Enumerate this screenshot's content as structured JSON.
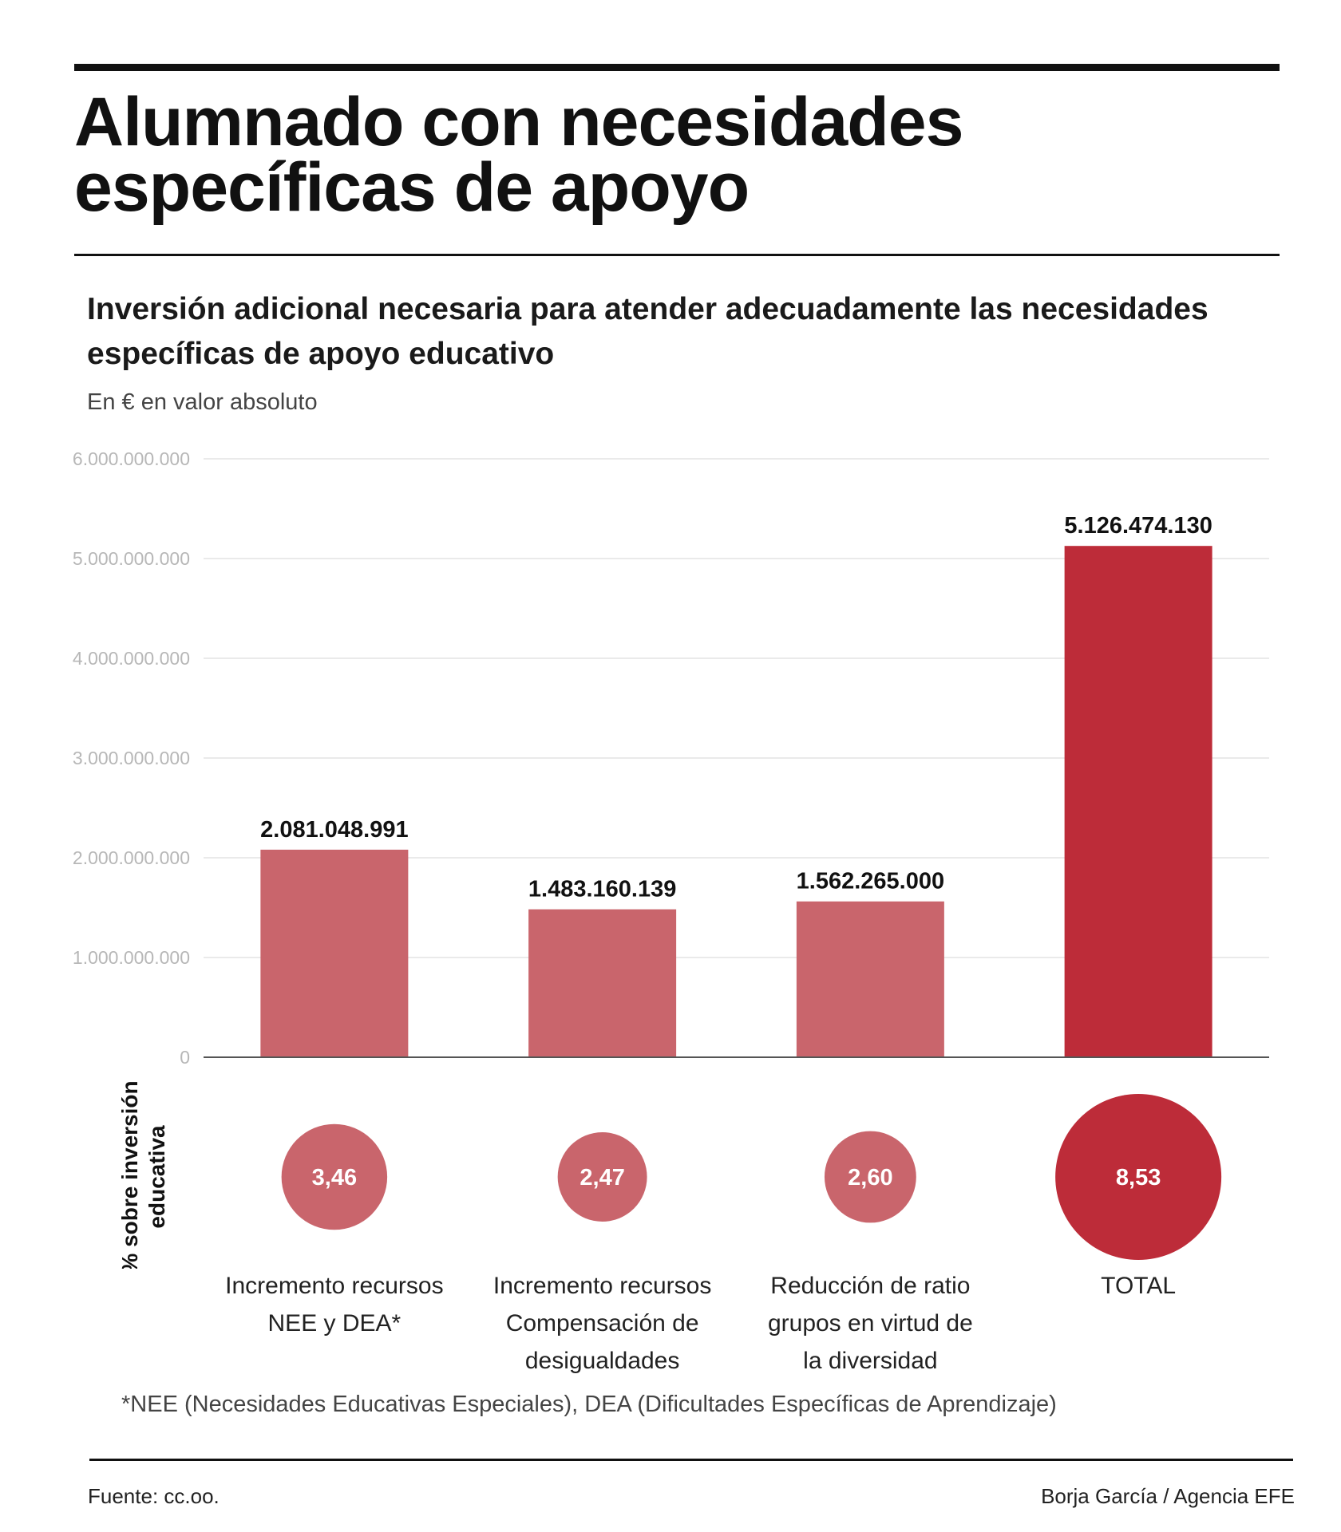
{
  "header": {
    "title_lines": [
      "Alumnado con necesidades",
      "específicas de apoyo"
    ],
    "subtitle_lines": [
      "Inversión adicional necesaria para atender adecuadamente las necesidades",
      "específicas de apoyo educativo"
    ],
    "units": "En € en valor absoluto"
  },
  "chart_data": {
    "type": "bar",
    "title": "Inversión adicional necesaria para atender adecuadamente las necesidades específicas de apoyo educativo",
    "ylabel": "En € en valor absoluto",
    "xlabel": "",
    "ylim": [
      0,
      6000000000
    ],
    "yticks": [
      0,
      1000000000,
      2000000000,
      3000000000,
      4000000000,
      5000000000,
      6000000000
    ],
    "ytick_labels": [
      "0",
      "1.000.000.000",
      "2.000.000.000",
      "3.000.000.000",
      "4.000.000.000",
      "5.000.000.000",
      "6.000.000.000"
    ],
    "grid": true,
    "categories": [
      [
        "Incremento recursos",
        "NEE y DEA*"
      ],
      [
        "Incremento recursos",
        "Compensación de",
        "desigualdades"
      ],
      [
        "Reducción de ratio",
        "grupos en virtud de",
        "la diversidad"
      ],
      [
        "TOTAL"
      ]
    ],
    "values": [
      2081048991,
      1483160139,
      1562265000,
      5126474130
    ],
    "value_labels": [
      "2.081.048.991",
      "1.483.160.139",
      "1.562.265.000",
      "5.126.474.130"
    ],
    "percent_axis_title": [
      "% sobre inversión",
      "educativa"
    ],
    "percent_values": [
      3.46,
      2.47,
      2.6,
      8.53
    ],
    "percent_labels": [
      "3,46",
      "2,47",
      "2,60",
      "8,53"
    ],
    "colors": {
      "bar": "#c9656c",
      "total": "#bd2c39",
      "grid": "#e3e3e3",
      "axis": "#555555"
    }
  },
  "footer": {
    "footnote": "*NEE (Necesidades Educativas Especiales), DEA (Dificultades Específicas de Aprendizaje)",
    "source": "Fuente: cc.oo.",
    "credit": "Borja García / Agencia EFE"
  }
}
